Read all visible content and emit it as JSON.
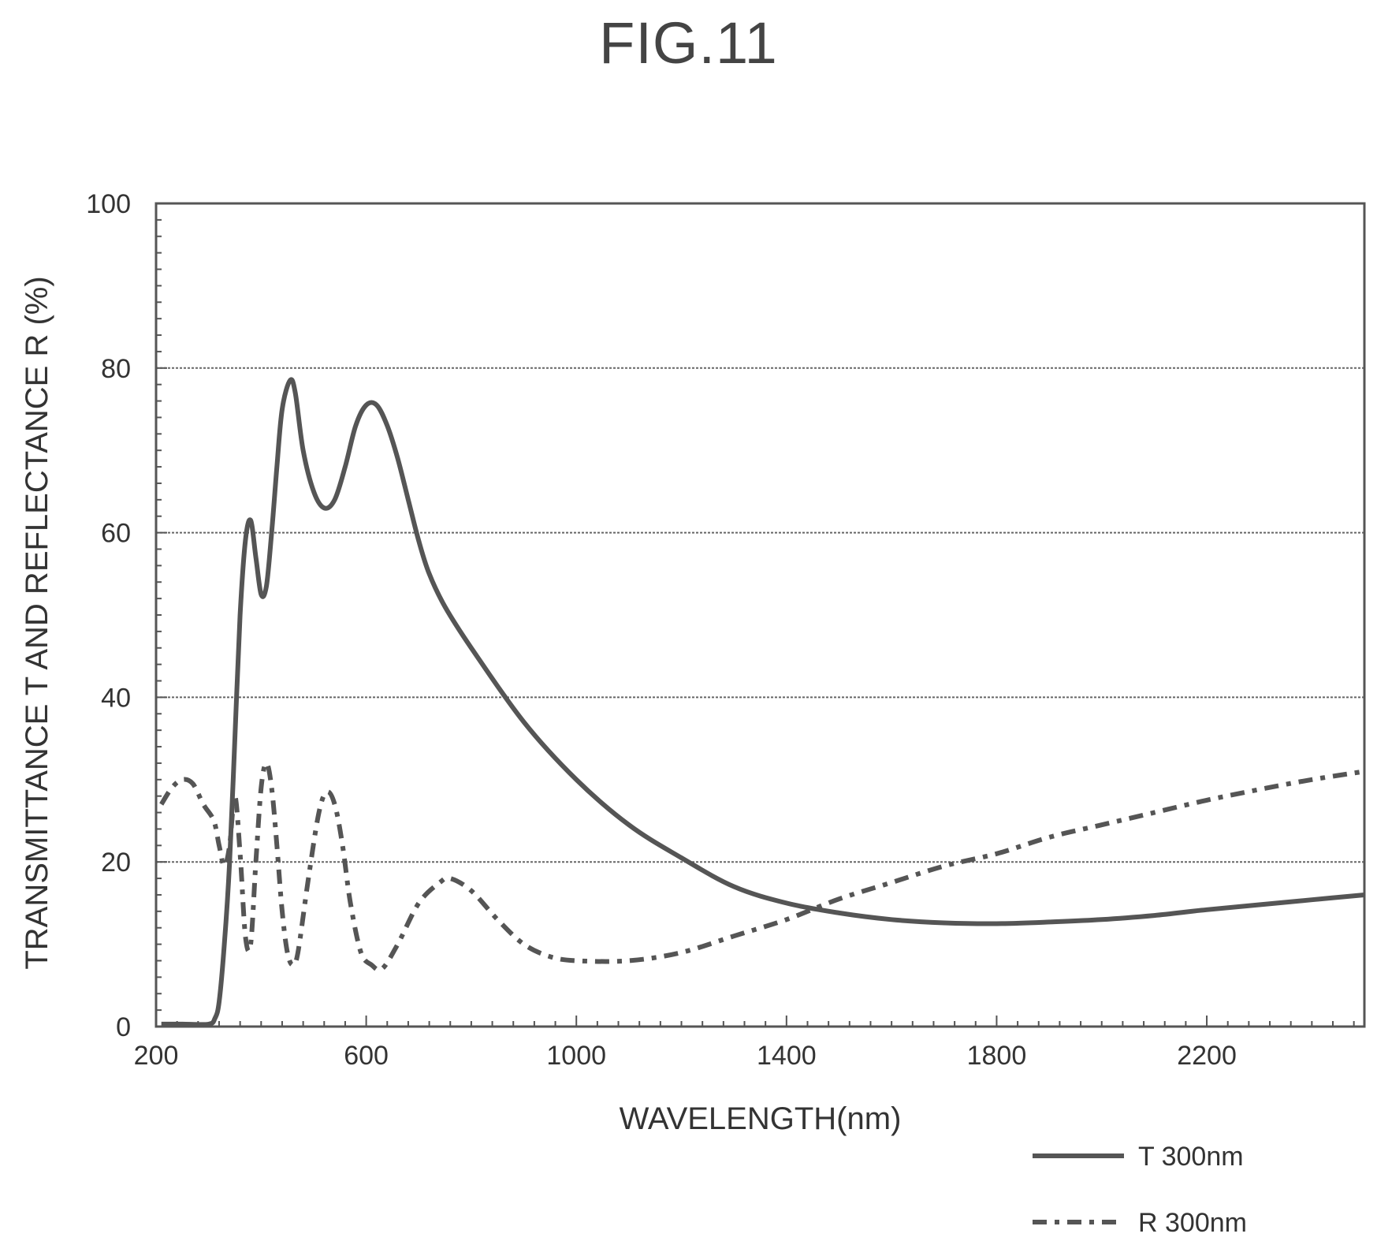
{
  "figure": {
    "title": "FIG.11"
  },
  "chart_data": {
    "type": "line",
    "xlabel": "WAVELENGTH(nm)",
    "ylabel": "TRANSMITTANCE T AND REFLECTANCE R (%)",
    "xlim": [
      200,
      2500
    ],
    "ylim": [
      0,
      100
    ],
    "x_ticks": [
      200,
      600,
      1000,
      1400,
      1800,
      2200
    ],
    "y_ticks": [
      0,
      20,
      40,
      60,
      80,
      100
    ],
    "grid": "horizontal dashed at 20, 40, 60, 80",
    "legend_position": "bottom-right",
    "colors": {
      "line": "#555555",
      "grid": "#666666",
      "frame": "#555555"
    },
    "series": [
      {
        "name": "T 300nm",
        "style": "solid",
        "points": [
          [
            210,
            0.3
          ],
          [
            250,
            0.3
          ],
          [
            300,
            0.3
          ],
          [
            312,
            1
          ],
          [
            320,
            3
          ],
          [
            330,
            10
          ],
          [
            340,
            20
          ],
          [
            350,
            35
          ],
          [
            360,
            50
          ],
          [
            370,
            59
          ],
          [
            380,
            61.5
          ],
          [
            390,
            57
          ],
          [
            400,
            52.5
          ],
          [
            410,
            53.5
          ],
          [
            420,
            60
          ],
          [
            430,
            68
          ],
          [
            440,
            75
          ],
          [
            455,
            78.5
          ],
          [
            465,
            77
          ],
          [
            480,
            70
          ],
          [
            500,
            65
          ],
          [
            520,
            63
          ],
          [
            540,
            64
          ],
          [
            560,
            68
          ],
          [
            580,
            73
          ],
          [
            600,
            75.5
          ],
          [
            620,
            75.5
          ],
          [
            640,
            73
          ],
          [
            660,
            69
          ],
          [
            680,
            64
          ],
          [
            700,
            59
          ],
          [
            720,
            55
          ],
          [
            750,
            51
          ],
          [
            800,
            46
          ],
          [
            900,
            37
          ],
          [
            1000,
            30
          ],
          [
            1100,
            24.5
          ],
          [
            1200,
            20.5
          ],
          [
            1300,
            17
          ],
          [
            1400,
            15
          ],
          [
            1500,
            13.8
          ],
          [
            1600,
            13
          ],
          [
            1700,
            12.6
          ],
          [
            1800,
            12.5
          ],
          [
            1900,
            12.7
          ],
          [
            2000,
            13
          ],
          [
            2100,
            13.5
          ],
          [
            2200,
            14.2
          ],
          [
            2300,
            14.8
          ],
          [
            2400,
            15.4
          ],
          [
            2500,
            16
          ]
        ]
      },
      {
        "name": "R 300nm",
        "style": "dashed",
        "points": [
          [
            210,
            27
          ],
          [
            230,
            29
          ],
          [
            250,
            30
          ],
          [
            270,
            29.5
          ],
          [
            290,
            27
          ],
          [
            310,
            25
          ],
          [
            320,
            22
          ],
          [
            330,
            19.5
          ],
          [
            340,
            22
          ],
          [
            350,
            28
          ],
          [
            360,
            21
          ],
          [
            370,
            11
          ],
          [
            380,
            10
          ],
          [
            390,
            20
          ],
          [
            400,
            29
          ],
          [
            410,
            32
          ],
          [
            420,
            29
          ],
          [
            430,
            22
          ],
          [
            440,
            14
          ],
          [
            450,
            9
          ],
          [
            460,
            7.5
          ],
          [
            470,
            9
          ],
          [
            490,
            18
          ],
          [
            510,
            26
          ],
          [
            525,
            28.5
          ],
          [
            540,
            27
          ],
          [
            555,
            22
          ],
          [
            570,
            15
          ],
          [
            590,
            9
          ],
          [
            610,
            7.5
          ],
          [
            630,
            7
          ],
          [
            660,
            10
          ],
          [
            700,
            15
          ],
          [
            740,
            17.5
          ],
          [
            760,
            18
          ],
          [
            800,
            16.5
          ],
          [
            850,
            13
          ],
          [
            900,
            10
          ],
          [
            950,
            8.5
          ],
          [
            1000,
            8
          ],
          [
            1100,
            8
          ],
          [
            1200,
            9
          ],
          [
            1300,
            11
          ],
          [
            1400,
            13
          ],
          [
            1500,
            15.5
          ],
          [
            1600,
            17.5
          ],
          [
            1700,
            19.5
          ],
          [
            1800,
            21
          ],
          [
            1900,
            23
          ],
          [
            2000,
            24.5
          ],
          [
            2100,
            26
          ],
          [
            2200,
            27.5
          ],
          [
            2300,
            28.8
          ],
          [
            2400,
            30
          ],
          [
            2500,
            31
          ]
        ]
      }
    ]
  }
}
